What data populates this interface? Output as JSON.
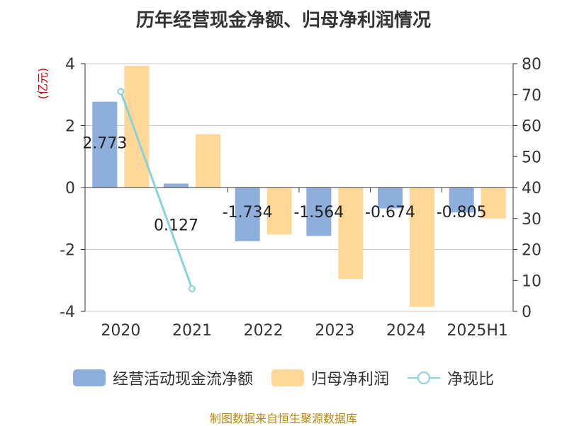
{
  "title": "历年经营现金净额、归母净利润情况",
  "source": "制图数据来自恒生聚源数据库",
  "chart_data": {
    "type": "bar",
    "categories": [
      "2020",
      "2021",
      "2022",
      "2023",
      "2024",
      "2025H1"
    ],
    "ylabel_left": "(亿元)",
    "ylim_left": [
      -4,
      4
    ],
    "yticks_left": [
      "4",
      "2",
      "0",
      "-2",
      "-4"
    ],
    "ylim_right": [
      0,
      80
    ],
    "yticks_right": [
      "80",
      "70",
      "60",
      "50",
      "40",
      "30",
      "20",
      "10",
      "0"
    ],
    "grid": true,
    "legend_position": "bottom",
    "series": [
      {
        "name": "经营活动现金流净额",
        "type": "bar",
        "axis": "left",
        "color": "#8eaedb",
        "values": [
          2.773,
          0.127,
          -1.734,
          -1.564,
          -0.674,
          -0.805
        ],
        "labels": [
          "2.773",
          "0.127",
          "-1.734",
          "-1.564",
          "-0.674",
          "-0.805"
        ]
      },
      {
        "name": "归母净利润",
        "type": "bar",
        "axis": "left",
        "color": "#ffd797",
        "values": [
          3.93,
          1.72,
          -1.52,
          -2.95,
          -3.85,
          -1.0
        ]
      },
      {
        "name": "净现比",
        "type": "line",
        "axis": "right",
        "color": "#86d3d8",
        "values": [
          71,
          7.3,
          null,
          null,
          null,
          null
        ]
      }
    ]
  }
}
